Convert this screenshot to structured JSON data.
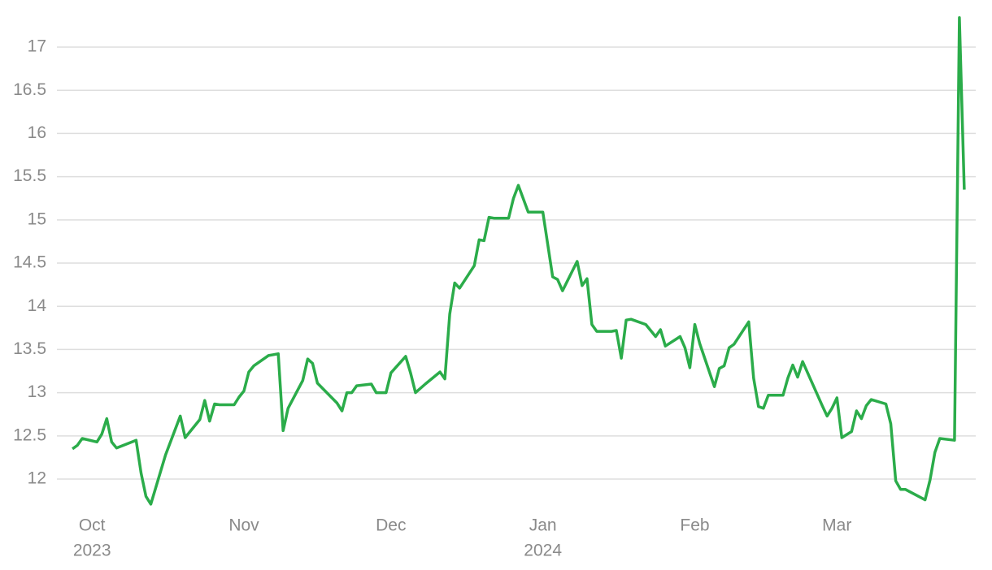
{
  "chart_data": {
    "type": "line",
    "x": [
      -4,
      -3,
      -2,
      1,
      2,
      3,
      4,
      5,
      9,
      10,
      11,
      12,
      15,
      18,
      19,
      22,
      23,
      24,
      25,
      26,
      29,
      30,
      31,
      32,
      33,
      36,
      37,
      38,
      39,
      40,
      43,
      44,
      45,
      46,
      50,
      51,
      52,
      53,
      54,
      57,
      58,
      60,
      61,
      64,
      65,
      66,
      68,
      71,
      72,
      73,
      74,
      75,
      78,
      79,
      80,
      81,
      82,
      85,
      86,
      87,
      89,
      92,
      94,
      95,
      96,
      99,
      100,
      101,
      102,
      103,
      106,
      107,
      108,
      109,
      110,
      113,
      115,
      116,
      117,
      120,
      121,
      122,
      123,
      124,
      127,
      128,
      129,
      130,
      131,
      134,
      135,
      136,
      137,
      138,
      141,
      142,
      143,
      144,
      145,
      149,
      150,
      151,
      152,
      153,
      155,
      156,
      157,
      158,
      159,
      162,
      163,
      164,
      165,
      166,
      170,
      171,
      172,
      173,
      176,
      177,
      178
    ],
    "series": [
      {
        "color": "#2bac4a",
        "values": [
          12.35,
          12.39,
          12.47,
          12.43,
          12.52,
          12.7,
          12.43,
          12.36,
          12.45,
          12.07,
          11.8,
          11.71,
          12.28,
          12.73,
          12.48,
          12.69,
          12.91,
          12.67,
          12.87,
          12.86,
          12.86,
          12.95,
          13.02,
          13.24,
          13.31,
          13.43,
          13.44,
          13.45,
          12.56,
          12.82,
          13.14,
          13.39,
          13.34,
          13.11,
          12.88,
          12.79,
          13.0,
          13.0,
          13.08,
          13.1,
          13.0,
          13.0,
          13.23,
          13.42,
          13.23,
          13.0,
          13.1,
          13.24,
          13.16,
          13.91,
          14.27,
          14.21,
          14.47,
          14.77,
          14.76,
          15.03,
          15.02,
          15.02,
          15.25,
          15.4,
          15.09,
          15.09,
          14.34,
          14.31,
          14.18,
          14.52,
          14.24,
          14.32,
          13.79,
          13.71,
          13.71,
          13.72,
          13.4,
          13.84,
          13.85,
          13.79,
          13.65,
          13.73,
          13.54,
          13.65,
          13.52,
          13.29,
          13.79,
          13.57,
          13.07,
          13.28,
          13.31,
          13.52,
          13.56,
          13.82,
          13.17,
          12.84,
          12.82,
          12.97,
          12.97,
          13.17,
          13.32,
          13.18,
          13.36,
          12.85,
          12.73,
          12.82,
          12.94,
          12.48,
          12.55,
          12.79,
          12.7,
          12.85,
          12.92,
          12.87,
          12.64,
          11.98,
          11.88,
          11.88,
          11.76,
          11.99,
          12.31,
          12.47,
          12.45,
          17.34,
          15.35
        ]
      }
    ],
    "xlim": [
      -7,
      180
    ],
    "xticks": [
      {
        "value": 0,
        "label": "Oct",
        "sublabel": "2023"
      },
      {
        "value": 31,
        "label": "Nov"
      },
      {
        "value": 61,
        "label": "Dec"
      },
      {
        "value": 92,
        "label": "Jan",
        "sublabel": "2024"
      },
      {
        "value": 123,
        "label": "Feb"
      },
      {
        "value": 152,
        "label": "Mar"
      }
    ],
    "ylim": [
      11.6,
      17.5
    ],
    "yticks": [
      12,
      12.5,
      13,
      13.5,
      14,
      14.5,
      15,
      15.5,
      16,
      16.5,
      17
    ],
    "grid": true
  }
}
